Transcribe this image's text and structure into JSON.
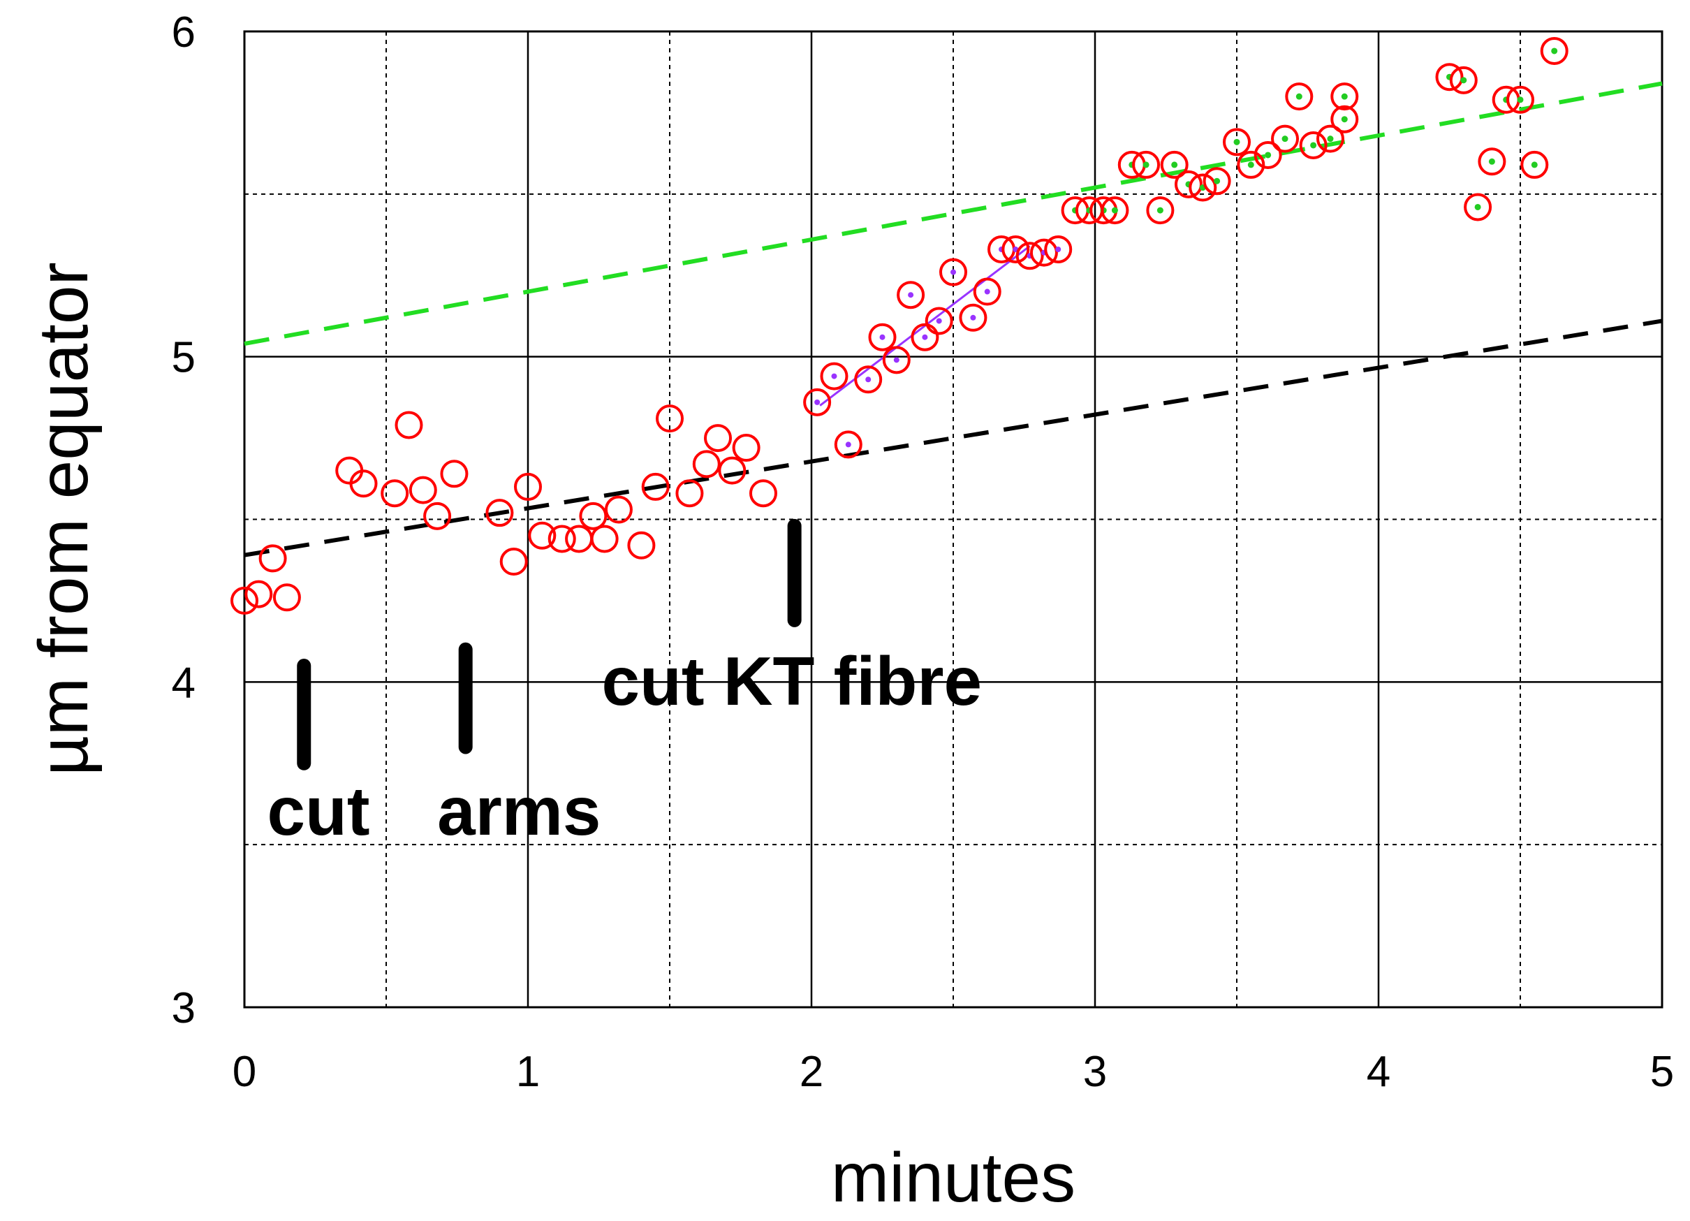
{
  "chart_data": {
    "type": "scatter",
    "title": "",
    "xlabel": "minutes",
    "ylabel": "µm from equator",
    "xlim": [
      0,
      5
    ],
    "ylim": [
      3,
      6
    ],
    "x_ticks": [
      "0",
      "1",
      "2",
      "3",
      "4",
      "5"
    ],
    "y_ticks": [
      "3",
      "4",
      "5",
      "6"
    ],
    "grid": "major solid, minor dashed",
    "colors": {
      "points": "#ff0000",
      "inner_green": "#22cc22",
      "inner_purple": "#9933ff",
      "trend_black": "#000000",
      "trend_green": "#22dd22",
      "fit_purple": "#9933ff"
    },
    "series": [
      {
        "kind": "red-open-circles",
        "points": [
          [
            0.0,
            4.25
          ],
          [
            0.05,
            4.27
          ],
          [
            0.1,
            4.38
          ],
          [
            0.15,
            4.26
          ],
          [
            0.37,
            4.65
          ],
          [
            0.42,
            4.61
          ],
          [
            0.53,
            4.58
          ],
          [
            0.58,
            4.79
          ],
          [
            0.63,
            4.59
          ],
          [
            0.68,
            4.51
          ],
          [
            0.74,
            4.64
          ],
          [
            0.9,
            4.52
          ],
          [
            0.95,
            4.37
          ],
          [
            1.0,
            4.6
          ],
          [
            1.05,
            4.45
          ],
          [
            1.12,
            4.44
          ],
          [
            1.18,
            4.44
          ],
          [
            1.23,
            4.51
          ],
          [
            1.27,
            4.44
          ],
          [
            1.32,
            4.53
          ],
          [
            1.4,
            4.42
          ],
          [
            1.45,
            4.6
          ],
          [
            1.5,
            4.81
          ],
          [
            1.57,
            4.58
          ],
          [
            1.63,
            4.67
          ],
          [
            1.67,
            4.75
          ],
          [
            1.72,
            4.65
          ],
          [
            1.77,
            4.72
          ],
          [
            1.83,
            4.58
          ]
        ]
      },
      {
        "kind": "red-circles-purple-center",
        "points": [
          [
            2.02,
            4.86
          ],
          [
            2.08,
            4.94
          ],
          [
            2.13,
            4.73
          ],
          [
            2.2,
            4.93
          ],
          [
            2.25,
            5.06
          ],
          [
            2.3,
            4.99
          ],
          [
            2.35,
            5.19
          ],
          [
            2.4,
            5.06
          ],
          [
            2.45,
            5.11
          ],
          [
            2.5,
            5.26
          ],
          [
            2.57,
            5.12
          ],
          [
            2.62,
            5.2
          ],
          [
            2.67,
            5.33
          ],
          [
            2.72,
            5.33
          ],
          [
            2.77,
            5.31
          ],
          [
            2.82,
            5.32
          ],
          [
            2.87,
            5.33
          ]
        ]
      },
      {
        "kind": "red-circles-green-center",
        "points": [
          [
            2.93,
            5.45
          ],
          [
            2.98,
            5.45
          ],
          [
            3.03,
            5.45
          ],
          [
            3.07,
            5.45
          ],
          [
            3.13,
            5.59
          ],
          [
            3.18,
            5.59
          ],
          [
            3.23,
            5.45
          ],
          [
            3.28,
            5.59
          ],
          [
            3.33,
            5.53
          ],
          [
            3.38,
            5.52
          ],
          [
            3.43,
            5.54
          ],
          [
            3.5,
            5.66
          ],
          [
            3.55,
            5.59
          ],
          [
            3.61,
            5.62
          ],
          [
            3.67,
            5.67
          ],
          [
            3.72,
            5.8
          ],
          [
            3.77,
            5.65
          ],
          [
            3.83,
            5.67
          ],
          [
            3.88,
            5.8
          ],
          [
            3.88,
            5.73
          ],
          [
            4.25,
            5.86
          ],
          [
            4.3,
            5.85
          ],
          [
            4.35,
            5.46
          ],
          [
            4.4,
            5.6
          ],
          [
            4.45,
            5.79
          ],
          [
            4.5,
            5.79
          ],
          [
            4.55,
            5.59
          ],
          [
            4.62,
            5.94
          ]
        ]
      }
    ],
    "trendlines": [
      {
        "kind": "dashed-black",
        "from": [
          0,
          4.39
        ],
        "to": [
          5,
          5.11
        ]
      },
      {
        "kind": "dashed-green",
        "from": [
          0,
          5.04
        ],
        "to": [
          5,
          5.84
        ]
      },
      {
        "kind": "solid-purple",
        "from": [
          2.03,
          4.85
        ],
        "to": [
          2.77,
          5.34
        ]
      }
    ],
    "markers": [
      {
        "x": 0.21,
        "y_top": 4.05,
        "y_bottom": 3.75
      },
      {
        "x": 0.78,
        "y_top": 4.1,
        "y_bottom": 3.8
      },
      {
        "x": 1.94,
        "y_top": 4.48,
        "y_bottom": 4.19
      }
    ],
    "annotations": [
      {
        "text": "cut",
        "x": 0.08,
        "y": 3.53
      },
      {
        "text": "arms",
        "x": 0.68,
        "y": 3.53
      },
      {
        "text": "cut KT fibre",
        "x": 1.26,
        "y": 3.93
      }
    ]
  }
}
